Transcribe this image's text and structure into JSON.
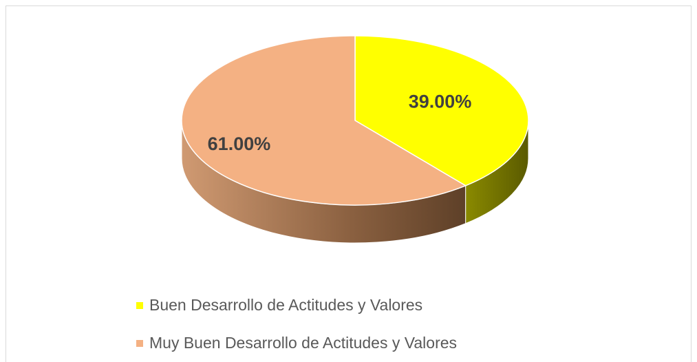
{
  "chart_data": {
    "type": "pie",
    "categories": [
      "Buen Desarrollo de Actitudes y Valores",
      "Muy Buen Desarrollo de Actitudes y Valores"
    ],
    "values": [
      39,
      61
    ],
    "value_labels": [
      "39.00%",
      "61.00%"
    ],
    "colors": [
      "#ffff00",
      "#f4b183"
    ],
    "legend": "bottom"
  }
}
